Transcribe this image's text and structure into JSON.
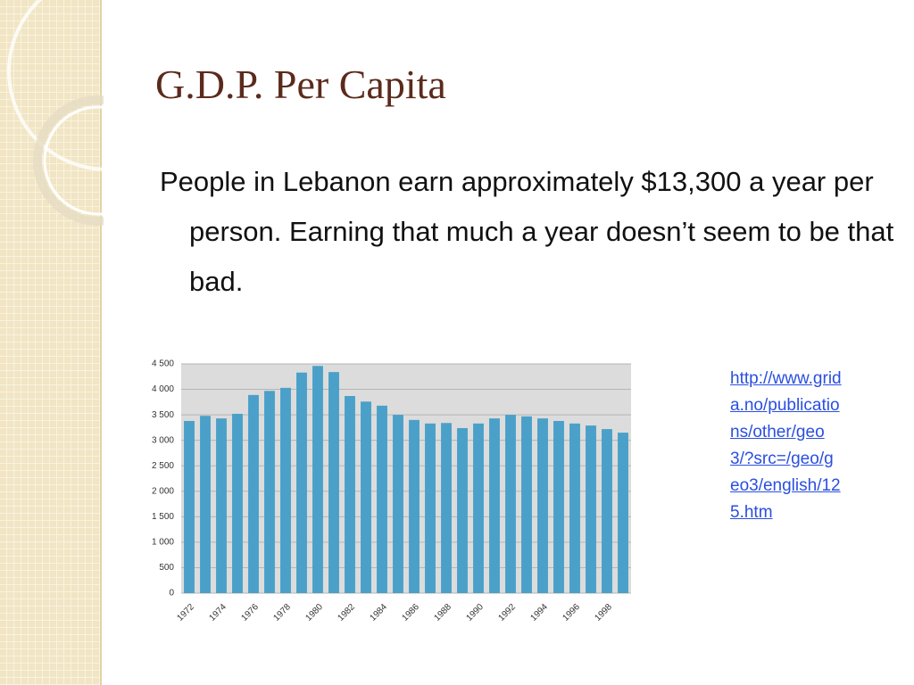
{
  "header": {
    "title": "G.D.P. Per Capita"
  },
  "body": {
    "text": "People in Lebanon earn approximately $13,300 a year per person. Earning that much a year doesn’t seem to be that bad."
  },
  "source_link": {
    "text": "http://www.grida.no/publications/other/geo3/?src=/geo/geo3/english/125.htm"
  },
  "chart_data": {
    "type": "bar",
    "categories": [
      "1972",
      null,
      "1974",
      null,
      "1976",
      null,
      "1978",
      null,
      "1980",
      null,
      "1982",
      null,
      "1984",
      null,
      "1986",
      null,
      "1988",
      null,
      "1990",
      null,
      "1992",
      null,
      "1994",
      null,
      "1996",
      null,
      "1998",
      null
    ],
    "values": [
      3380,
      3480,
      3430,
      3520,
      3890,
      3970,
      4030,
      4330,
      4460,
      4340,
      3870,
      3760,
      3680,
      3500,
      3400,
      3330,
      3340,
      3240,
      3330,
      3430,
      3500,
      3470,
      3430,
      3380,
      3330,
      3290,
      3220,
      3150
    ],
    "color": "#4aa0c8",
    "ylim": [
      0,
      4500
    ],
    "yticks": [
      0,
      500,
      {
        "value": 1000,
        "label": "1 000"
      },
      {
        "value": 1500,
        "label": "1 500"
      },
      {
        "value": 2000,
        "label": "2 000"
      },
      {
        "value": 2500,
        "label": "2 500"
      },
      {
        "value": 3000,
        "label": "3 000"
      },
      {
        "value": 3500,
        "label": "3 500"
      },
      {
        "value": 4000,
        "label": "4 000"
      },
      {
        "value": 4500,
        "label": "4 500"
      }
    ],
    "grid": true
  }
}
